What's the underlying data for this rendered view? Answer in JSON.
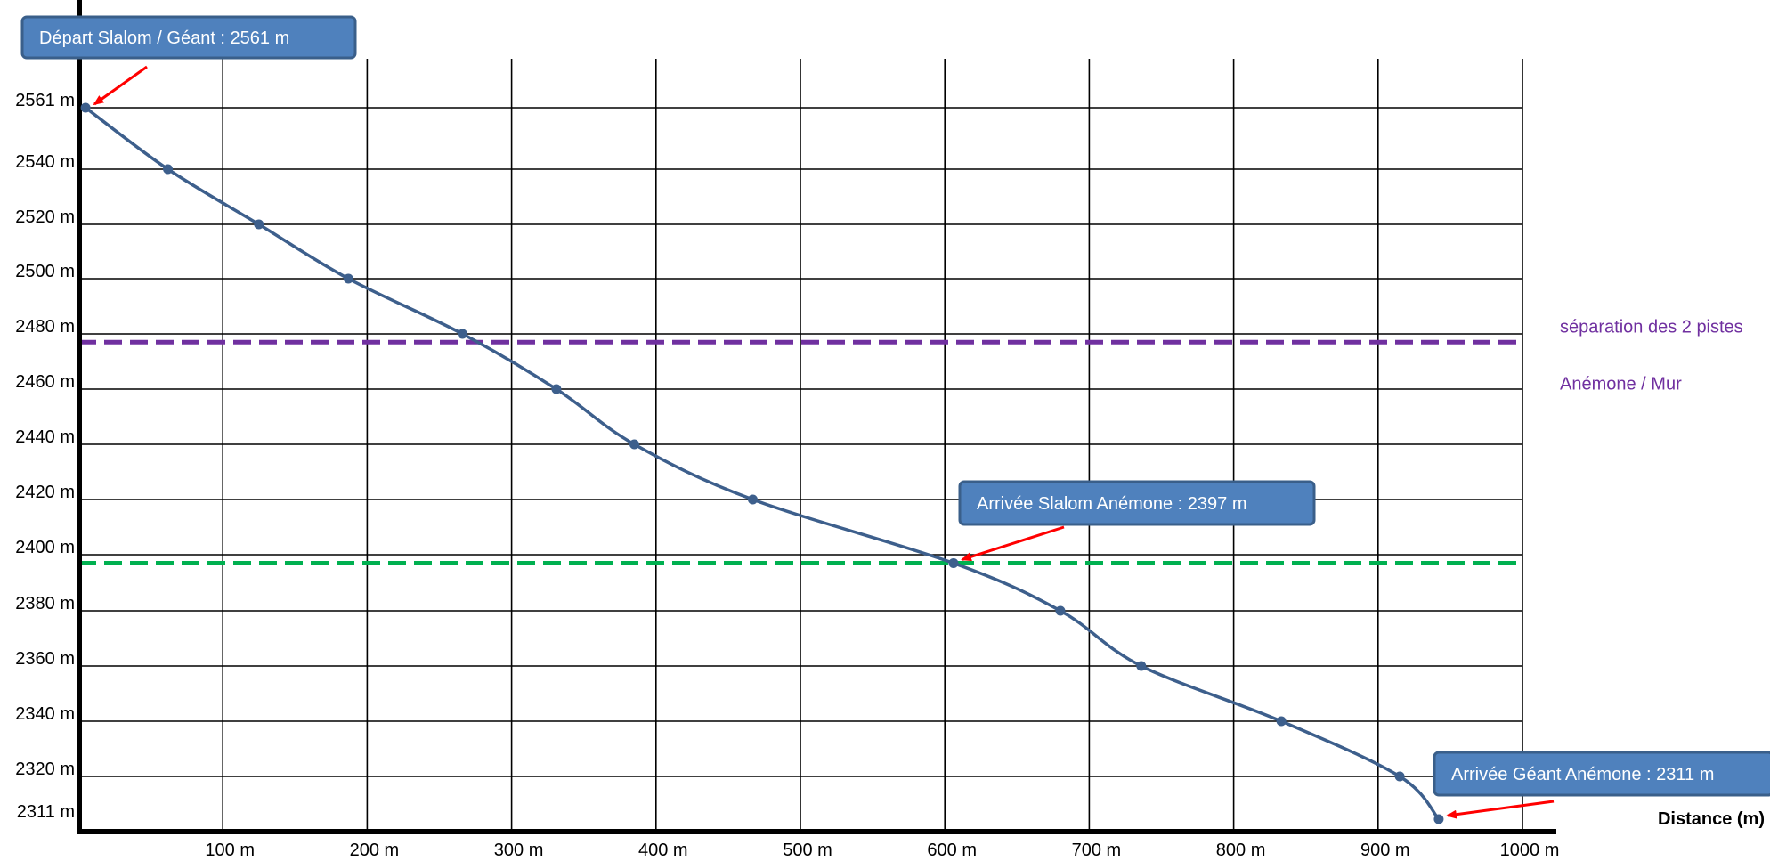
{
  "chart_data": {
    "type": "line",
    "xlabel": "Distance (m)",
    "ylabel": "",
    "xlim": [
      0,
      1000
    ],
    "x_ticks": [
      {
        "value": 100,
        "label": "100 m"
      },
      {
        "value": 200,
        "label": "200 m"
      },
      {
        "value": 300,
        "label": "300 m"
      },
      {
        "value": 400,
        "label": "400 m"
      },
      {
        "value": 500,
        "label": "500 m"
      },
      {
        "value": 600,
        "label": "600 m"
      },
      {
        "value": 700,
        "label": "700 m"
      },
      {
        "value": 800,
        "label": "800 m"
      },
      {
        "value": 900,
        "label": "900 m"
      },
      {
        "value": 1000,
        "label": "1000 m"
      }
    ],
    "y_ticks": [
      {
        "value": 2561,
        "label": "2561 m"
      },
      {
        "value": 2540,
        "label": "2540 m"
      },
      {
        "value": 2520,
        "label": "2520 m"
      },
      {
        "value": 2500,
        "label": "2500 m"
      },
      {
        "value": 2480,
        "label": "2480 m"
      },
      {
        "value": 2460,
        "label": "2460 m"
      },
      {
        "value": 2440,
        "label": "2440 m"
      },
      {
        "value": 2420,
        "label": "2420 m"
      },
      {
        "value": 2400,
        "label": "2400 m"
      },
      {
        "value": 2380,
        "label": "2380 m"
      },
      {
        "value": 2360,
        "label": "2360 m"
      },
      {
        "value": 2340,
        "label": "2340 m"
      },
      {
        "value": 2320,
        "label": "2320 m"
      },
      {
        "value": 2311,
        "label": "2311 m"
      }
    ],
    "grid": true,
    "series": [
      {
        "color": "#3d5f8c",
        "points": [
          {
            "x": 5,
            "y": 2561
          },
          {
            "x": 62,
            "y": 2540
          },
          {
            "x": 125,
            "y": 2520
          },
          {
            "x": 187,
            "y": 2500
          },
          {
            "x": 266,
            "y": 2480
          },
          {
            "x": 331,
            "y": 2460
          },
          {
            "x": 385,
            "y": 2440
          },
          {
            "x": 467,
            "y": 2420
          },
          {
            "x": 606,
            "y": 2397
          },
          {
            "x": 680,
            "y": 2380
          },
          {
            "x": 736,
            "y": 2360
          },
          {
            "x": 833,
            "y": 2340
          },
          {
            "x": 915,
            "y": 2320
          },
          {
            "x": 942,
            "y": 2311
          }
        ]
      }
    ],
    "reference_lines": [
      {
        "y": 2477,
        "color": "#7030a0",
        "style": "dashed",
        "labels": [
          "séparation des 2 pistes",
          "Anémone / Mur"
        ]
      },
      {
        "y": 2397,
        "color": "#00b050",
        "style": "dashed",
        "labels": []
      }
    ],
    "annotations": [
      {
        "text": "Départ Slalom / Géant : 2561 m",
        "x": 5,
        "y": 2561
      },
      {
        "text": "Arrivée Slalom Anémone : 2397 m",
        "x": 606,
        "y": 2397
      },
      {
        "text": "Arrivée Géant Anémone : 2311 m",
        "x": 942,
        "y": 2311
      }
    ],
    "colors": {
      "callout_fill": "#4f81bd",
      "callout_border": "#3a5f8a",
      "arrow": "#ff0000",
      "grid": "#000000"
    }
  }
}
